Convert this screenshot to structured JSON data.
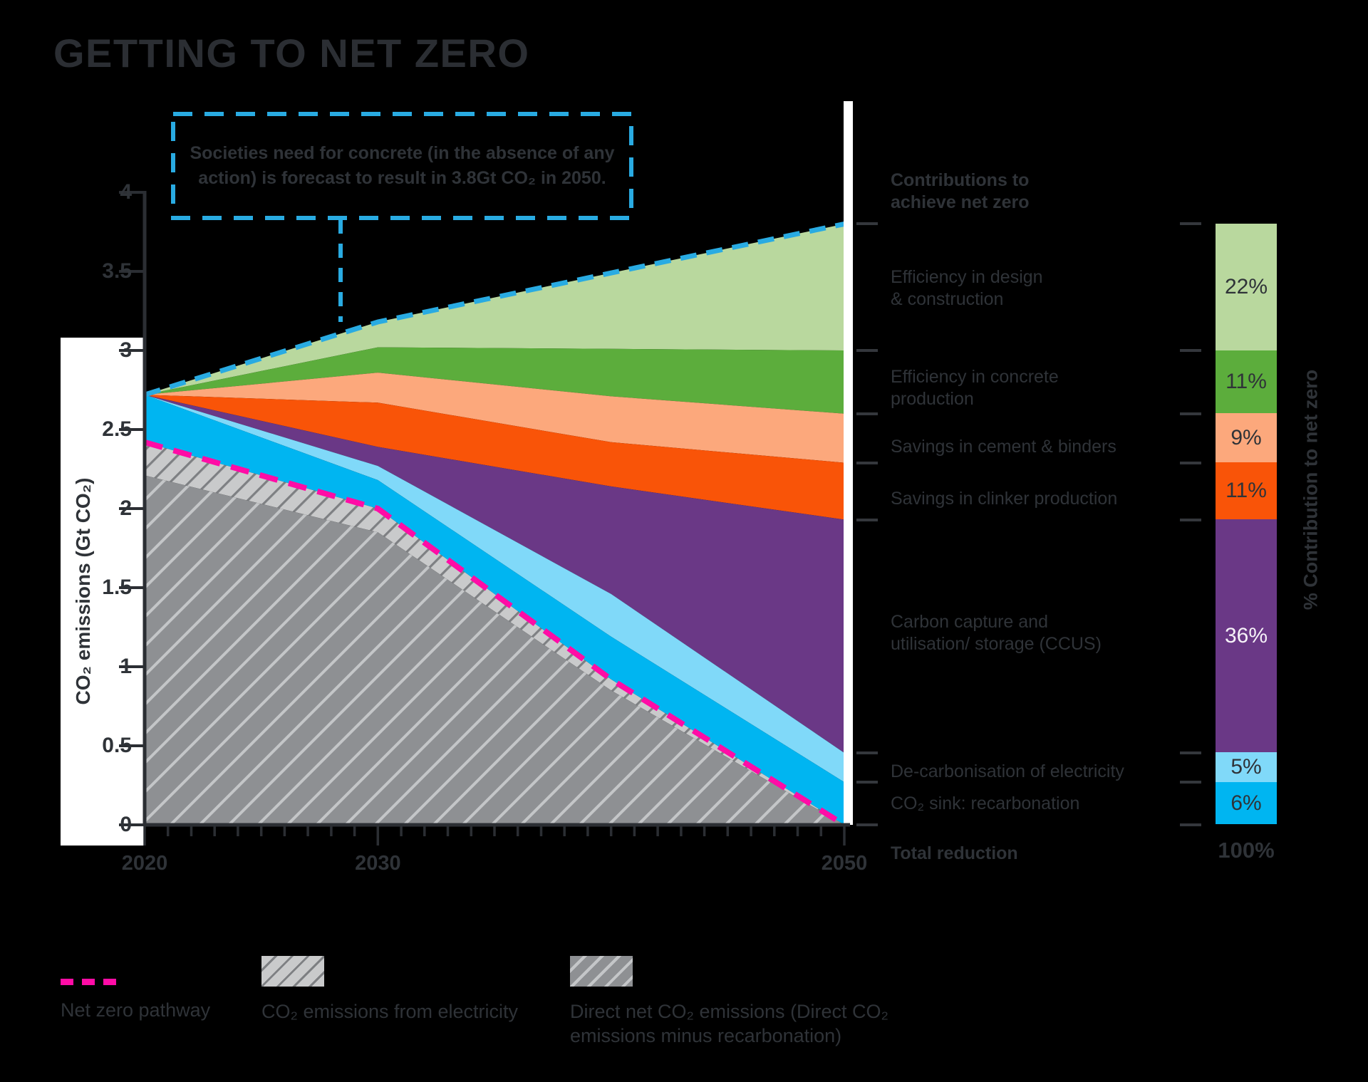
{
  "title": "GETTING TO NET ZERO",
  "annotation": {
    "lines": [
      "Societies need for concrete (in the absence of any",
      "action) is forecast to result in 3.8Gt CO₂ in 2050."
    ]
  },
  "axes": {
    "y": {
      "label": "CO₂ emissions (Gt CO₂)",
      "ticks": [
        {
          "label": "4",
          "value": 4
        },
        {
          "label": "3.5",
          "value": 3.5
        },
        {
          "label": "3",
          "value": 3
        },
        {
          "label": "2.5",
          "value": 2.5
        },
        {
          "label": "2",
          "value": 2
        },
        {
          "label": "1.5",
          "value": 1.5
        },
        {
          "label": "1",
          "value": 1
        },
        {
          "label": "0.5",
          "value": 0.5
        },
        {
          "label": "0",
          "value": 0
        }
      ]
    },
    "x": {
      "tick_interval_years": 1,
      "labels": [
        {
          "text": "2020",
          "year": 2020
        },
        {
          "text": "2030",
          "year": 2030
        },
        {
          "text": "2050",
          "year": 2050
        }
      ]
    }
  },
  "right_column_header": {
    "lines": [
      "Contributions to",
      "achieve net zero"
    ]
  },
  "right_axis_label": "%  Contribution to net zero",
  "total_row": {
    "label": "Total reduction",
    "value": "100%"
  },
  "contributions": [
    {
      "id": "eff-design",
      "label_lines": [
        "Efficiency in design",
        "& construction"
      ],
      "pct": "22%",
      "color": "#b9d89e",
      "pct_text": "dark"
    },
    {
      "id": "eff-concrete",
      "label_lines": [
        "Efficiency in concrete",
        "production"
      ],
      "pct": "11%",
      "color": "#5cad3c",
      "pct_text": "dark"
    },
    {
      "id": "cement",
      "label_lines": [
        "Savings in cement & binders"
      ],
      "pct": "9%",
      "color": "#fca87c",
      "pct_text": "dark"
    },
    {
      "id": "clinker",
      "label_lines": [
        "Savings in clinker production"
      ],
      "pct": "11%",
      "color": "#f95408",
      "pct_text": "dark"
    },
    {
      "id": "ccus",
      "label_lines": [
        "Carbon capture and",
        "utilisation/ storage (CCUS)"
      ],
      "pct": "36%",
      "color": "#6a3886",
      "pct_text": "light"
    },
    {
      "id": "decarb",
      "label_lines": [
        "De-carbonisation of electricity"
      ],
      "pct": "5%",
      "color": "#80d9f9",
      "pct_text": "dark"
    },
    {
      "id": "recarb",
      "label_lines": [
        "CO₂ sink: recarbonation"
      ],
      "pct": "6%",
      "color": "#00b5f1",
      "pct_text": "dark"
    }
  ],
  "legend": {
    "items": [
      {
        "type": "dash-line",
        "label_lines": [
          "Net zero pathway"
        ]
      },
      {
        "type": "hatch-light",
        "label_lines": [
          "CO₂ emissions from electricity"
        ]
      },
      {
        "type": "hatch-dark",
        "label_lines": [
          "Direct net CO₂ emissions (Direct CO₂",
          "emissions minus recarbonation)"
        ]
      }
    ]
  },
  "colors": {
    "background": "#000000",
    "title_text": "#2b2e33",
    "text_dark": "#2f3338",
    "axis": "#2b2e33",
    "white": "#ffffff",
    "bau_line": "#29abe2",
    "net_zero_line": "#ff0ca6",
    "hatch_light_bg": "#c9cacb",
    "hatch_light_line": "#7e8083",
    "hatch_dark_bg": "#8e9093",
    "hatch_dark_line": "#c4c6c8",
    "pct_light_text": "#f6f2f8"
  },
  "chart_data": {
    "type": "area",
    "title": "GETTING TO NET ZERO",
    "xlabel": "",
    "ylabel": "CO₂ emissions (Gt CO₂)",
    "ylim": [
      0,
      4
    ],
    "unit": "Gt CO₂",
    "x": [
      2020,
      2030,
      2040,
      2050
    ],
    "x_labeled_ticks": [
      2020,
      2030,
      2050
    ],
    "grid": false,
    "legend_position": "right-and-bottom",
    "bau_forecast_2050": "3.8Gt CO₂",
    "stack_edges_top_to_bottom": {
      "bau_forecast_no_action": [
        2.72,
        3.18,
        3.49,
        3.8
      ],
      "efficiency_design_bottom": [
        2.72,
        3.02,
        3.01,
        3.0
      ],
      "efficiency_concrete_bottom": [
        2.72,
        2.86,
        2.71,
        2.6
      ],
      "cement_binders_bottom": [
        2.72,
        2.67,
        2.42,
        2.29
      ],
      "clinker_bottom": [
        2.72,
        2.39,
        2.14,
        1.93
      ],
      "ccus_bottom": [
        2.72,
        2.27,
        1.46,
        0.455
      ],
      "decarbonisation_bottom": [
        2.72,
        2.18,
        1.19,
        0.27
      ],
      "net_zero_pathway": [
        2.42,
        2.0,
        0.92,
        0
      ],
      "electricity_emissions_bottom": [
        2.21,
        1.85,
        0.85,
        0
      ],
      "zero": [
        0,
        0,
        0,
        0
      ]
    },
    "band_names_top_to_bottom": [
      "Efficiency in design & construction",
      "Efficiency in concrete production",
      "Savings in cement & binders",
      "Savings in clinker production",
      "Carbon capture and utilisation/ storage (CCUS)",
      "De-carbonisation of electricity",
      "CO₂ sink: recarbonation",
      "CO₂ emissions from electricity",
      "Direct net CO₂ emissions (Direct CO₂ emissions minus recarbonation)"
    ],
    "contribution_percentages": {
      "values": [
        22,
        11,
        9,
        11,
        36,
        5,
        6
      ],
      "total": 100
    }
  }
}
